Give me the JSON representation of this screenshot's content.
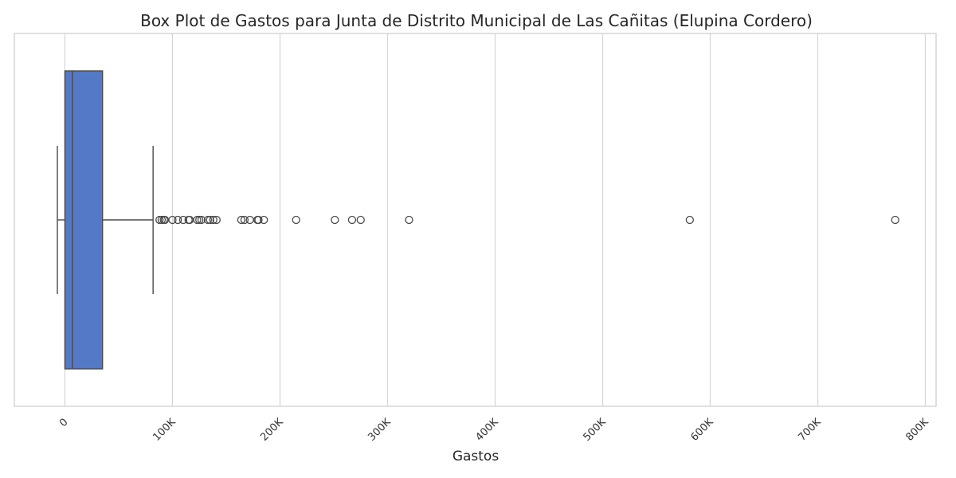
{
  "chart_data": {
    "type": "box",
    "orientation": "horizontal",
    "title": "Box Plot de Gastos para Junta de Distrito Municipal de Las Cañitas (Elupina Cordero)",
    "xlabel": "Gastos",
    "xlim": [
      -47000,
      810000
    ],
    "xticks": [
      0,
      100000,
      200000,
      300000,
      400000,
      500000,
      600000,
      700000,
      800000
    ],
    "xtick_labels": [
      "0",
      "100K",
      "200K",
      "300K",
      "400K",
      "500K",
      "600K",
      "700K",
      "800K"
    ],
    "grid": true,
    "box": {
      "whisker_low": -7000,
      "q1": 0,
      "median": 7000,
      "q3": 35000,
      "whisker_high": 82000,
      "color": "#5479c7"
    },
    "outliers": [
      88000,
      90000,
      92000,
      93000,
      100000,
      105000,
      110000,
      115000,
      116000,
      123000,
      125000,
      127000,
      133000,
      135000,
      138000,
      141000,
      164000,
      167000,
      172000,
      179000,
      180000,
      185000,
      215000,
      251000,
      267000,
      275000,
      320000,
      581000,
      772000
    ]
  }
}
